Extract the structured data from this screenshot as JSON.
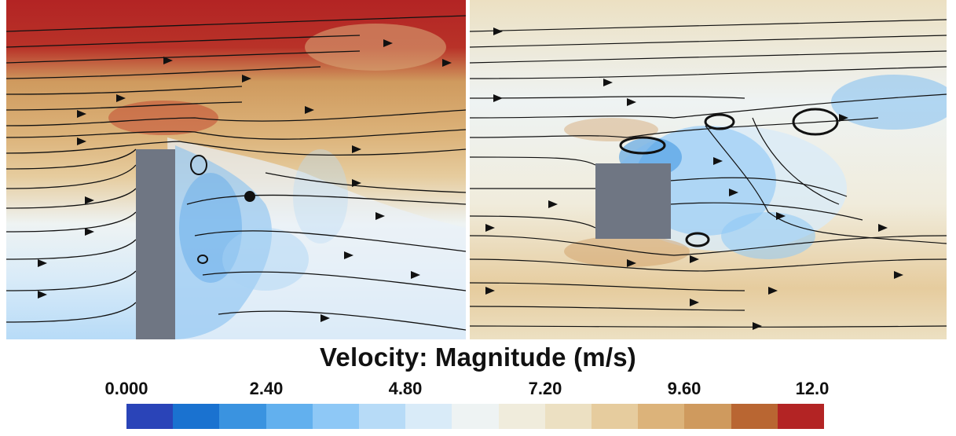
{
  "legend": {
    "title": "Velocity: Magnitude (m/s)",
    "ticks": [
      "0.000",
      "2.40",
      "4.80",
      "7.20",
      "9.60",
      "12.0"
    ],
    "range": [
      0,
      12
    ],
    "colors": [
      "#2a44b8",
      "#1a72d0",
      "#3a93e0",
      "#62b0ee",
      "#8ec8f6",
      "#b7dbf7",
      "#d9ebf8",
      "#eef3f3",
      "#f0ecdc",
      "#ece0c2",
      "#e6cc9e",
      "#dcb37a",
      "#cf9a5e",
      "#b96632",
      "#b32424"
    ]
  },
  "panels": [
    {
      "name": "left-panel",
      "obstacle": "tall-rectangle"
    },
    {
      "name": "right-panel",
      "obstacle": "square"
    }
  ]
}
